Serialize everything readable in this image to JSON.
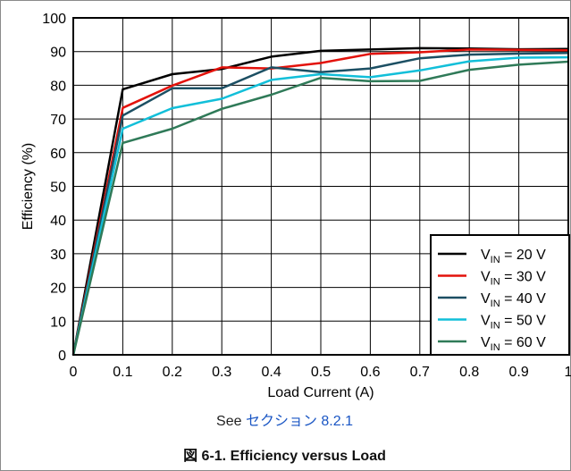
{
  "chart_data": {
    "type": "line",
    "xlabel": "Load Current (A)",
    "ylabel": "Efficiency (%)",
    "xlim": [
      0,
      1
    ],
    "ylim": [
      0,
      100
    ],
    "x_ticks": [
      "0",
      "0.1",
      "0.2",
      "0.3",
      "0.4",
      "0.5",
      "0.6",
      "0.7",
      "0.8",
      "0.9",
      "1"
    ],
    "y_ticks": [
      "0",
      "10",
      "20",
      "30",
      "40",
      "50",
      "60",
      "70",
      "80",
      "90",
      "100"
    ],
    "grid": true,
    "legend_position": "bottom-right",
    "x": [
      0,
      0.1,
      0.2,
      0.3,
      0.4,
      0.5,
      0.6,
      0.7,
      0.8,
      0.9,
      1.0
    ],
    "series": [
      {
        "name": "V_IN = 20 V",
        "label_main": "V",
        "label_sub": "IN",
        "label_rest": " = 20 V",
        "color": "#000000",
        "values": [
          0,
          78.8,
          83.3,
          84.8,
          88.5,
          90.2,
          90.6,
          91.0,
          90.9,
          90.7,
          90.8
        ]
      },
      {
        "name": "V_IN = 30 V",
        "label_main": "V",
        "label_sub": "IN",
        "label_rest": " = 30 V",
        "color": "#e3120b",
        "values": [
          0,
          73.3,
          79.9,
          85.3,
          85.0,
          86.6,
          89.3,
          89.8,
          90.6,
          90.5,
          90.4
        ]
      },
      {
        "name": "V_IN = 40 V",
        "label_main": "V",
        "label_sub": "IN",
        "label_rest": " = 40 V",
        "color": "#1c4f63",
        "values": [
          0,
          71.0,
          79.1,
          79.1,
          85.3,
          83.9,
          85.0,
          88.0,
          89.1,
          89.4,
          89.6
        ]
      },
      {
        "name": "V_IN = 50 V",
        "label_main": "V",
        "label_sub": "IN",
        "label_rest": " = 50 V",
        "color": "#12bfd9",
        "values": [
          0,
          67.1,
          73.2,
          76.0,
          81.6,
          83.3,
          82.4,
          84.4,
          87.1,
          88.2,
          88.3
        ]
      },
      {
        "name": "V_IN = 60 V",
        "label_main": "V",
        "label_sub": "IN",
        "label_rest": " = 60 V",
        "color": "#2f7a58",
        "values": [
          0,
          62.9,
          67.1,
          73.0,
          77.2,
          82.2,
          81.2,
          81.3,
          84.6,
          86.1,
          87.0
        ]
      }
    ]
  },
  "footer": {
    "see_prefix": "See ",
    "see_link": "セクション 8.2.1",
    "caption": "図 6-1. Efficiency versus Load"
  }
}
